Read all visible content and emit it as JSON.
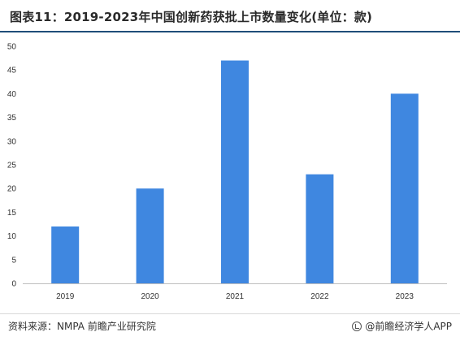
{
  "title": "图表11：2019-2023年中国创新药获批上市数量变化(单位：款)",
  "source": "资料来源：NMPA 前瞻产业研究院",
  "brand": "@前瞻经济学人APP",
  "chart_data": {
    "type": "bar",
    "categories": [
      "2019",
      "2020",
      "2021",
      "2022",
      "2023"
    ],
    "values": [
      12,
      20,
      47,
      23,
      40
    ],
    "ylim": [
      0,
      50
    ],
    "yticks": [
      0,
      5,
      10,
      15,
      20,
      25,
      30,
      35,
      40,
      45,
      50
    ],
    "xlabel": "",
    "ylabel": "",
    "bar_color": "#3f87e0",
    "grid": false,
    "legend": "none"
  }
}
